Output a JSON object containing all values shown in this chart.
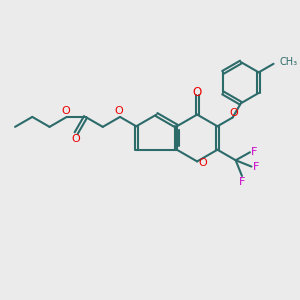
{
  "background_color": "#EBEBEB",
  "bond_color": "#2D6B6B",
  "oxygen_color": "#EE0000",
  "fluorine_color": "#CC00CC",
  "lw": 1.5,
  "dbo": 0.065,
  "figsize": [
    3.0,
    3.0
  ],
  "dpi": 100,
  "xlim": [
    0,
    10
  ],
  "ylim": [
    0,
    10
  ]
}
